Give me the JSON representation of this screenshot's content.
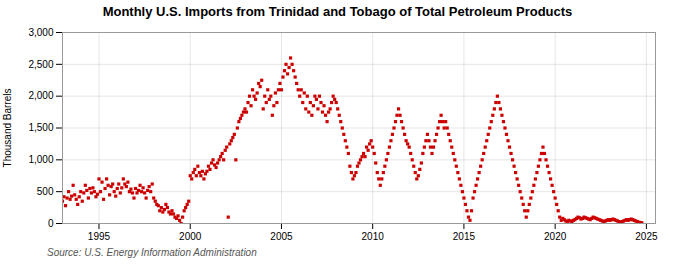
{
  "chart_data": {
    "type": "scatter",
    "title": "Monthly U.S. Imports from Trinidad and Tobago of Total Petroleum Products",
    "ylabel": "Thousand Barrels",
    "annotation": "Source: U.S. Energy Information Administration",
    "color": "#cc0000",
    "marker": "square",
    "grid": true,
    "xlim": [
      1993.0,
      2025.5
    ],
    "xticks": [
      1995,
      2000,
      2005,
      2010,
      2015,
      2020,
      2025
    ],
    "ylim": [
      0,
      3000
    ],
    "yticks": [
      0,
      500,
      {
        "value": 1000,
        "label": "1,000"
      },
      {
        "value": 1500,
        "label": "1,500"
      },
      {
        "value": 2000,
        "label": "2,000"
      },
      {
        "value": 2500,
        "label": "2,500"
      },
      {
        "value": 3000,
        "label": "3,000"
      }
    ],
    "x": [
      1993.0,
      1993.083,
      1993.167,
      1993.25,
      1993.333,
      1993.417,
      1993.5,
      1993.583,
      1993.667,
      1993.75,
      1993.833,
      1993.917,
      1994.0,
      1994.083,
      1994.167,
      1994.25,
      1994.333,
      1994.417,
      1994.5,
      1994.583,
      1994.667,
      1994.75,
      1994.833,
      1994.917,
      1995.0,
      1995.083,
      1995.167,
      1995.25,
      1995.333,
      1995.417,
      1995.5,
      1995.583,
      1995.667,
      1995.75,
      1995.833,
      1995.917,
      1996.0,
      1996.083,
      1996.167,
      1996.25,
      1996.333,
      1996.417,
      1996.5,
      1996.583,
      1996.667,
      1996.75,
      1996.833,
      1996.917,
      1997.0,
      1997.083,
      1997.167,
      1997.25,
      1997.333,
      1997.417,
      1997.5,
      1997.583,
      1997.667,
      1997.75,
      1997.833,
      1997.917,
      1998.0,
      1998.083,
      1998.167,
      1998.25,
      1998.333,
      1998.417,
      1998.5,
      1998.583,
      1998.667,
      1998.75,
      1998.833,
      1998.917,
      1999.0,
      1999.083,
      1999.167,
      1999.25,
      1999.333,
      1999.417,
      1999.5,
      1999.583,
      1999.667,
      1999.75,
      1999.833,
      1999.917,
      2000.0,
      2000.083,
      2000.167,
      2000.25,
      2000.333,
      2000.417,
      2000.5,
      2000.583,
      2000.667,
      2000.75,
      2000.833,
      2000.917,
      2001.0,
      2001.083,
      2001.167,
      2001.25,
      2001.333,
      2001.417,
      2001.5,
      2001.583,
      2001.667,
      2001.75,
      2001.833,
      2001.917,
      2002.0,
      2002.083,
      2002.167,
      2002.25,
      2002.333,
      2002.417,
      2002.5,
      2002.583,
      2002.667,
      2002.75,
      2002.833,
      2002.917,
      2003.0,
      2003.083,
      2003.167,
      2003.25,
      2003.333,
      2003.417,
      2003.5,
      2003.583,
      2003.667,
      2003.75,
      2003.833,
      2003.917,
      2004.0,
      2004.083,
      2004.167,
      2004.25,
      2004.333,
      2004.417,
      2004.5,
      2004.583,
      2004.667,
      2004.75,
      2004.833,
      2004.917,
      2005.0,
      2005.083,
      2005.167,
      2005.25,
      2005.333,
      2005.417,
      2005.5,
      2005.583,
      2005.667,
      2005.75,
      2005.833,
      2005.917,
      2006.0,
      2006.083,
      2006.167,
      2006.25,
      2006.333,
      2006.417,
      2006.5,
      2006.583,
      2006.667,
      2006.75,
      2006.833,
      2006.917,
      2007.0,
      2007.083,
      2007.167,
      2007.25,
      2007.333,
      2007.417,
      2007.5,
      2007.583,
      2007.667,
      2007.75,
      2007.833,
      2007.917,
      2008.0,
      2008.083,
      2008.167,
      2008.25,
      2008.333,
      2008.417,
      2008.5,
      2008.583,
      2008.667,
      2008.75,
      2008.833,
      2008.917,
      2009.0,
      2009.083,
      2009.167,
      2009.25,
      2009.333,
      2009.417,
      2009.5,
      2009.583,
      2009.667,
      2009.75,
      2009.833,
      2009.917,
      2010.0,
      2010.083,
      2010.167,
      2010.25,
      2010.333,
      2010.417,
      2010.5,
      2010.583,
      2010.667,
      2010.75,
      2010.833,
      2010.917,
      2011.0,
      2011.083,
      2011.167,
      2011.25,
      2011.333,
      2011.417,
      2011.5,
      2011.583,
      2011.667,
      2011.75,
      2011.833,
      2011.917,
      2012.0,
      2012.083,
      2012.167,
      2012.25,
      2012.333,
      2012.417,
      2012.5,
      2012.583,
      2012.667,
      2012.75,
      2012.833,
      2012.917,
      2013.0,
      2013.083,
      2013.167,
      2013.25,
      2013.333,
      2013.417,
      2013.5,
      2013.583,
      2013.667,
      2013.75,
      2013.833,
      2013.917,
      2014.0,
      2014.083,
      2014.167,
      2014.25,
      2014.333,
      2014.417,
      2014.5,
      2014.583,
      2014.667,
      2014.75,
      2014.833,
      2014.917,
      2015.0,
      2015.083,
      2015.167,
      2015.25,
      2015.333,
      2015.417,
      2015.5,
      2015.583,
      2015.667,
      2015.75,
      2015.833,
      2015.917,
      2016.0,
      2016.083,
      2016.167,
      2016.25,
      2016.333,
      2016.417,
      2016.5,
      2016.583,
      2016.667,
      2016.75,
      2016.833,
      2016.917,
      2017.0,
      2017.083,
      2017.167,
      2017.25,
      2017.333,
      2017.417,
      2017.5,
      2017.583,
      2017.667,
      2017.75,
      2017.833,
      2017.917,
      2018.0,
      2018.083,
      2018.167,
      2018.25,
      2018.333,
      2018.417,
      2018.5,
      2018.583,
      2018.667,
      2018.75,
      2018.833,
      2018.917,
      2019.0,
      2019.083,
      2019.167,
      2019.25,
      2019.333,
      2019.417,
      2019.5,
      2019.583,
      2019.667,
      2019.75,
      2019.833,
      2019.917,
      2020.0,
      2020.083,
      2020.167,
      2020.25,
      2020.333,
      2020.417,
      2020.5,
      2020.583,
      2020.667,
      2020.75,
      2020.833,
      2020.917,
      2021.0,
      2021.083,
      2021.167,
      2021.25,
      2021.333,
      2021.417,
      2021.5,
      2021.583,
      2021.667,
      2021.75,
      2021.833,
      2021.917,
      2022.0,
      2022.083,
      2022.167,
      2022.25,
      2022.333,
      2022.417,
      2022.5,
      2022.583,
      2022.667,
      2022.75,
      2022.833,
      2022.917,
      2023.0,
      2023.083,
      2023.167,
      2023.25,
      2023.333,
      2023.417,
      2023.5,
      2023.583,
      2023.667,
      2023.75,
      2023.833,
      2023.917,
      2024.0,
      2024.083,
      2024.167,
      2024.25,
      2024.333,
      2024.417,
      2024.5,
      2024.583,
      2024.667,
      2024.75
    ],
    "values": [
      350,
      420,
      280,
      400,
      500,
      380,
      430,
      600,
      450,
      380,
      300,
      420,
      500,
      350,
      480,
      600,
      520,
      400,
      550,
      480,
      560,
      500,
      420,
      460,
      700,
      500,
      650,
      380,
      550,
      700,
      600,
      450,
      580,
      620,
      500,
      430,
      550,
      620,
      480,
      560,
      700,
      620,
      580,
      650,
      500,
      540,
      480,
      400,
      550,
      480,
      520,
      600,
      500,
      560,
      480,
      400,
      520,
      580,
      500,
      620,
      400,
      350,
      300,
      280,
      200,
      250,
      180,
      220,
      300,
      250,
      180,
      150,
      200,
      150,
      100,
      80,
      120,
      50,
      0,
      100,
      200,
      250,
      300,
      350,
      750,
      700,
      800,
      850,
      750,
      900,
      800,
      750,
      820,
      700,
      780,
      820,
      900,
      850,
      950,
      1000,
      920,
      880,
      950,
      1000,
      1050,
      1100,
      1000,
      1150,
      1200,
      100,
      1250,
      1300,
      1350,
      1400,
      1000,
      1500,
      1600,
      1650,
      1700,
      1750,
      1800,
      1750,
      1900,
      2000,
      1850,
      2100,
      2000,
      1950,
      2050,
      2200,
      2150,
      2250,
      1800,
      2000,
      1900,
      2100,
      1950,
      2000,
      1700,
      1850,
      2050,
      1900,
      2100,
      2200,
      2100,
      2300,
      2400,
      2500,
      2350,
      2450,
      2600,
      2500,
      2400,
      2300,
      2200,
      2100,
      2000,
      2100,
      1900,
      2050,
      1800,
      2000,
      1750,
      1900,
      1700,
      1850,
      2000,
      1950,
      1800,
      2000,
      1900,
      1750,
      1850,
      1700,
      1600,
      1750,
      1800,
      1900,
      2000,
      1950,
      1900,
      1800,
      1700,
      1600,
      1500,
      1400,
      1300,
      1200,
      1100,
      900,
      800,
      700,
      750,
      800,
      900,
      950,
      1000,
      1050,
      1100,
      1050,
      1200,
      1150,
      1250,
      1300,
      1200,
      1100,
      950,
      800,
      700,
      600,
      700,
      800,
      900,
      1000,
      1100,
      1200,
      1300,
      1400,
      1500,
      1600,
      1700,
      1800,
      1700,
      1600,
      1500,
      1400,
      1300,
      1250,
      1200,
      1100,
      1000,
      900,
      800,
      700,
      750,
      850,
      950,
      1100,
      1200,
      1300,
      1400,
      1300,
      1200,
      1100,
      1200,
      1300,
      1400,
      1500,
      1600,
      1700,
      1600,
      1500,
      1600,
      1500,
      1400,
      1300,
      1200,
      1100,
      1000,
      900,
      800,
      700,
      600,
      500,
      400,
      300,
      200,
      100,
      50,
      200,
      400,
      500,
      600,
      700,
      800,
      900,
      1000,
      1100,
      1200,
      1300,
      1400,
      1500,
      1600,
      1700,
      1800,
      1900,
      2000,
      1900,
      1800,
      1700,
      1600,
      1500,
      1400,
      1300,
      1200,
      1100,
      1000,
      900,
      800,
      700,
      600,
      500,
      400,
      300,
      200,
      100,
      200,
      300,
      400,
      500,
      600,
      700,
      800,
      900,
      1000,
      1100,
      1200,
      1100,
      1000,
      900,
      800,
      700,
      600,
      500,
      400,
      300,
      200,
      100,
      50,
      80,
      60,
      40,
      30,
      50,
      40,
      30,
      50,
      60,
      80,
      100,
      90,
      70,
      80,
      100,
      90,
      80,
      70,
      60,
      80,
      100,
      90,
      80,
      70,
      60,
      50,
      40,
      30,
      40,
      50,
      60,
      50,
      60,
      70,
      60,
      50,
      40,
      30,
      20,
      30,
      40,
      50,
      60,
      50,
      60,
      70,
      60,
      50,
      40,
      30,
      20,
      15,
      10
    ]
  }
}
